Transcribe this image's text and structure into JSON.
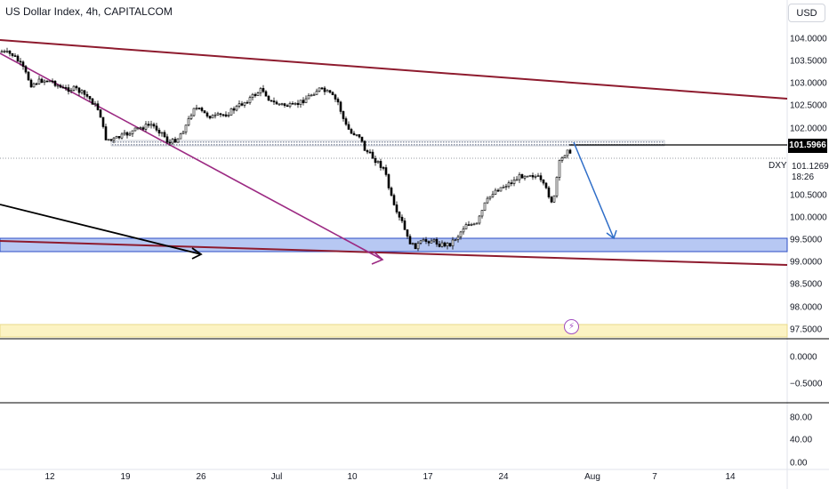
{
  "header": {
    "title": "US Dollar Index, 4h, CAPITALCOM",
    "currency_button": "USD"
  },
  "price_scale": {
    "labels": [
      "104.0000",
      "103.5000",
      "103.0000",
      "102.5000",
      "102.0000",
      "100.5000",
      "100.0000",
      "99.5000",
      "99.0000",
      "98.5000",
      "98.0000",
      "97.5000"
    ],
    "last_price_tag": "101.5966",
    "symbol_label": "DXY",
    "symbol_price": "101.1269",
    "countdown": "18:26"
  },
  "indicator_1_scale": {
    "labels": [
      "0.0000",
      "−0.5000"
    ]
  },
  "indicator_2_scale": {
    "labels": [
      "80.00",
      "40.00",
      "0.00"
    ]
  },
  "time_axis": {
    "labels": [
      "12",
      "19",
      "26",
      "Jul",
      "10",
      "17",
      "24",
      "Aug",
      "7",
      "14"
    ]
  },
  "icons": {
    "flash": "flash-icon"
  },
  "colors": {
    "trendline": "#8e1b2e",
    "diagonal_purple": "#9c2a83",
    "demand_zone_fill": "#b7c8f3",
    "demand_zone_border": "#2b4dc4",
    "supply_zone_fill": "#fcf3c3",
    "projection_arrow": "#2f6ec8",
    "black_arrow": "#000000"
  }
}
